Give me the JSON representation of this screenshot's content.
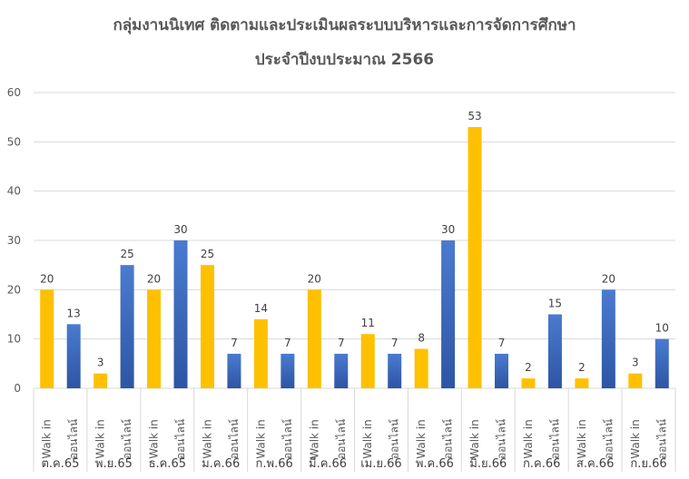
{
  "colors": {
    "walkin": "#FFC000",
    "online_top": "#4A7BD0",
    "online_bottom": "#2E55A4",
    "grid": "#D9D9D9",
    "text": "#595959"
  },
  "chart_data": {
    "type": "bar",
    "title": "กลุ่มงานนิเทศ ติดตามและประเมินผลระบบบริหารและการจัดการศึกษา",
    "subtitle": "ประจำปีงบประมาณ 2566",
    "ylim": [
      0,
      60
    ],
    "yticks": [
      0,
      10,
      20,
      30,
      40,
      50,
      60
    ],
    "grid": true,
    "legend": "none",
    "categories": [
      "ต.ค.65",
      "พ.ย.65",
      "ธ.ค.65",
      "ม.ค.66",
      "ก.พ.66",
      "มี.ค.66",
      "เม.ย.66",
      "พ.ค.66",
      "มิ.ย.66",
      "ก.ค.66",
      "ส.ค.66",
      "ก.ย.66"
    ],
    "sub_categories": [
      "Walk in",
      "ออนไลน์"
    ],
    "series": [
      {
        "values": [
          20,
          3,
          20,
          25,
          14,
          20,
          11,
          8,
          53,
          2,
          2,
          3
        ]
      },
      {
        "values": [
          13,
          25,
          30,
          7,
          7,
          7,
          7,
          30,
          7,
          15,
          20,
          10
        ]
      }
    ]
  }
}
